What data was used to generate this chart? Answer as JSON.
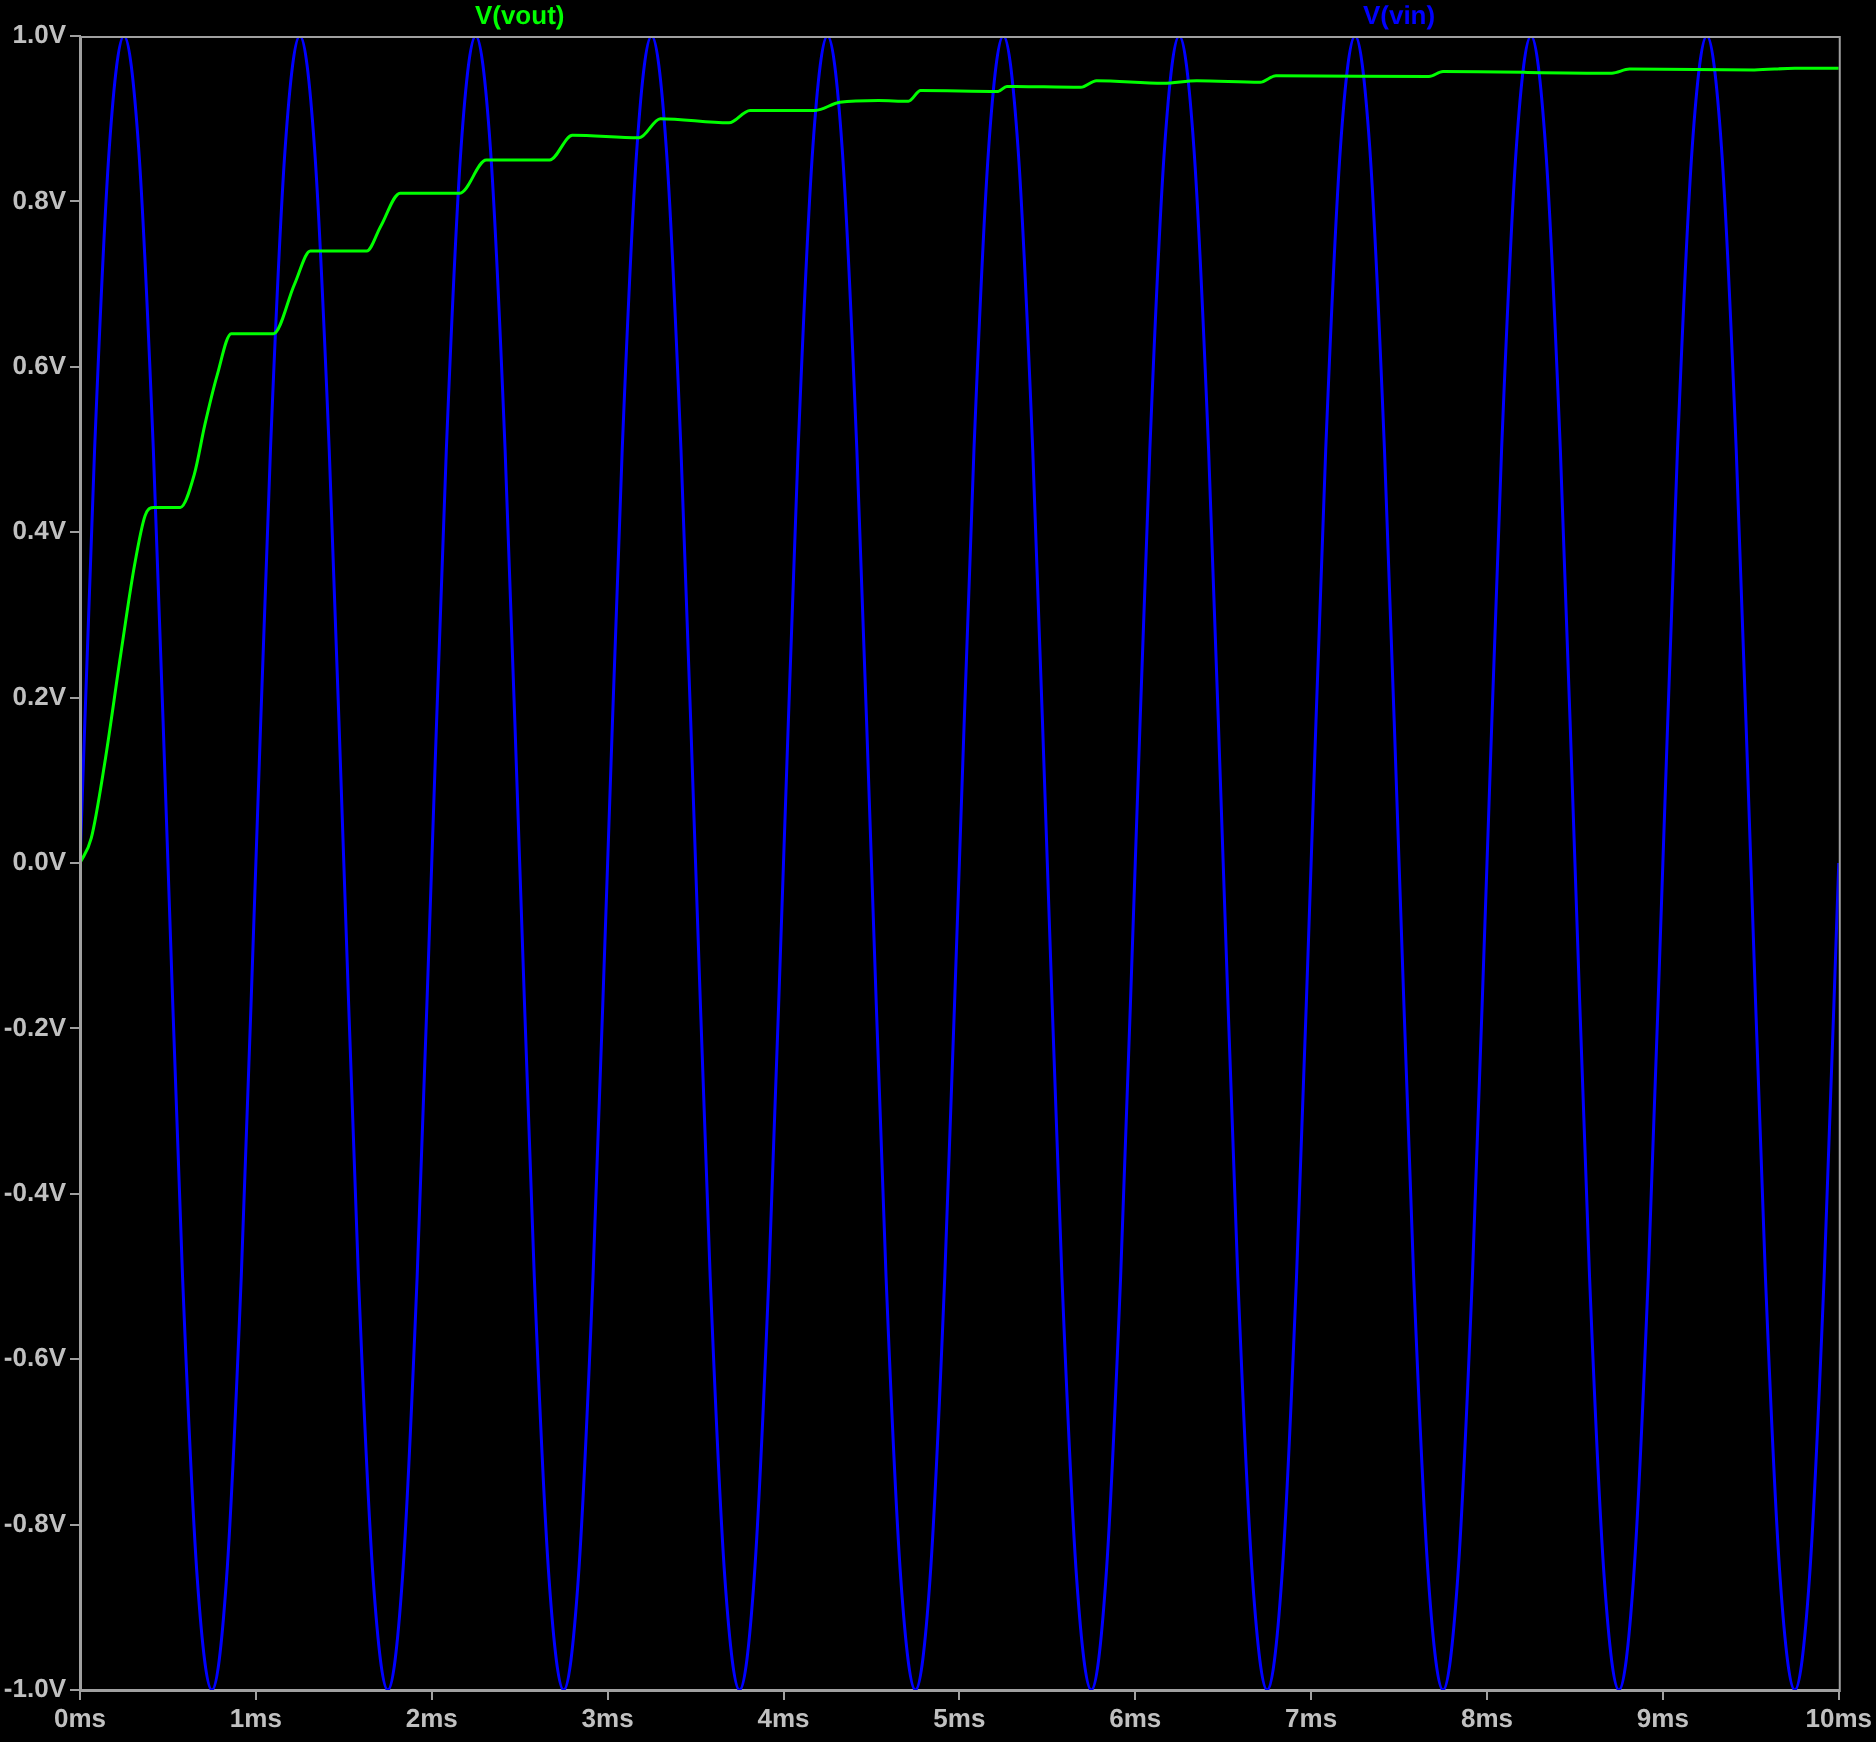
{
  "chart_data": {
    "type": "line",
    "legend": "top",
    "grid": false,
    "marker": "none",
    "line_style": "solid",
    "xlim": [
      0,
      10
    ],
    "xticks": [
      {
        "value": 0,
        "label": "0ms"
      },
      {
        "value": 1,
        "label": "1ms"
      },
      {
        "value": 2,
        "label": "2ms"
      },
      {
        "value": 3,
        "label": "3ms"
      },
      {
        "value": 4,
        "label": "4ms"
      },
      {
        "value": 5,
        "label": "5ms"
      },
      {
        "value": 6,
        "label": "6ms"
      },
      {
        "value": 7,
        "label": "7ms"
      },
      {
        "value": 8,
        "label": "8ms"
      },
      {
        "value": 9,
        "label": "9ms"
      },
      {
        "value": 10,
        "label": "10ms"
      }
    ],
    "ylim": [
      -1,
      1
    ],
    "yticks": [
      {
        "value": -1,
        "label": "-1.0V"
      },
      {
        "value": -0.8,
        "label": "-0.8V"
      },
      {
        "value": -0.6,
        "label": "-0.6V"
      },
      {
        "value": -0.4,
        "label": "-0.4V"
      },
      {
        "value": -0.2,
        "label": "-0.2V"
      },
      {
        "value": 0,
        "label": "0.0V"
      },
      {
        "value": 0.2,
        "label": "0.2V"
      },
      {
        "value": 0.4,
        "label": "0.4V"
      },
      {
        "value": 0.6,
        "label": "0.6V"
      },
      {
        "value": 0.8,
        "label": "0.8V"
      },
      {
        "value": 1,
        "label": "1.0V"
      }
    ],
    "series": [
      {
        "name": "V(vout)",
        "color": "#00ff00",
        "x": [
          0,
          0.064,
          0.14,
          0.23,
          0.31,
          0.37,
          0.42,
          0.57,
          0.65,
          0.71,
          0.78,
          0.86,
          0.91,
          1.1,
          1.22,
          1.31,
          1.37,
          1.63,
          1.71,
          1.82,
          2.16,
          2.31,
          2.67,
          2.8,
          3.18,
          3.3,
          3.69,
          3.81,
          4.18,
          4.32,
          4.54,
          4.71,
          4.78,
          5.22,
          5.27,
          5.69,
          5.78,
          6.16,
          6.35,
          6.71,
          6.8,
          7.67,
          7.75,
          8.71,
          8.81,
          9.52,
          9.75,
          10
        ],
        "values": [
          0,
          0.03,
          0.12,
          0.25,
          0.36,
          0.42,
          0.43,
          0.43,
          0.47,
          0.53,
          0.59,
          0.64,
          0.64,
          0.64,
          0.7,
          0.74,
          0.74,
          0.74,
          0.77,
          0.81,
          0.81,
          0.85,
          0.85,
          0.88,
          0.877,
          0.9,
          0.895,
          0.91,
          0.91,
          0.92,
          0.922,
          0.921,
          0.934,
          0.933,
          0.939,
          0.938,
          0.946,
          0.943,
          0.946,
          0.944,
          0.952,
          0.951,
          0.957,
          0.955,
          0.96,
          0.959,
          0.961,
          0.961
        ]
      },
      {
        "name": "V(vin)",
        "color": "#0000ff",
        "x": [
          0,
          0.083,
          0.167,
          0.25,
          0.333,
          0.417,
          0.5,
          0.583,
          0.667,
          0.75,
          0.833,
          0.917,
          1,
          1.083,
          1.167,
          1.25,
          1.333,
          1.417,
          1.5,
          1.583,
          1.667,
          1.75,
          1.833,
          1.917,
          2,
          2.083,
          2.167,
          2.25,
          2.333,
          2.417,
          2.5,
          2.583,
          2.667,
          2.75,
          2.833,
          2.917,
          3,
          3.083,
          3.167,
          3.25,
          3.333,
          3.417,
          3.5,
          3.583,
          3.667,
          3.75,
          3.833,
          3.917,
          4,
          4.083,
          4.167,
          4.25,
          4.333,
          4.417,
          4.5,
          4.583,
          4.667,
          4.75,
          4.833,
          4.917,
          5,
          5.083,
          5.167,
          5.25,
          5.333,
          5.417,
          5.5,
          5.583,
          5.667,
          5.75,
          5.833,
          5.917,
          6,
          6.083,
          6.167,
          6.25,
          6.333,
          6.417,
          6.5,
          6.583,
          6.667,
          6.75,
          6.833,
          6.917,
          7,
          7.083,
          7.167,
          7.25,
          7.333,
          7.417,
          7.5,
          7.583,
          7.667,
          7.75,
          7.833,
          7.917,
          8,
          8.083,
          8.167,
          8.25,
          8.333,
          8.417,
          8.5,
          8.583,
          8.667,
          8.75,
          8.833,
          8.917,
          9,
          9.083,
          9.167,
          9.25,
          9.333,
          9.417,
          9.5,
          9.583,
          9.667,
          9.75,
          9.833,
          9.917,
          10
        ],
        "values": [
          0,
          0.5,
          0.866,
          1,
          0.866,
          0.5,
          0,
          -0.5,
          -0.866,
          -1,
          -0.866,
          -0.5,
          0,
          0.5,
          0.866,
          1,
          0.866,
          0.5,
          0,
          -0.5,
          -0.866,
          -1,
          -0.866,
          -0.5,
          0,
          0.5,
          0.866,
          1,
          0.866,
          0.5,
          0,
          -0.5,
          -0.866,
          -1,
          -0.866,
          -0.5,
          0,
          0.5,
          0.866,
          1,
          0.866,
          0.5,
          0,
          -0.5,
          -0.866,
          -1,
          -0.866,
          -0.5,
          0,
          0.5,
          0.866,
          1,
          0.866,
          0.5,
          0,
          -0.5,
          -0.866,
          -1,
          -0.866,
          -0.5,
          0,
          0.5,
          0.866,
          1,
          0.866,
          0.5,
          0,
          -0.5,
          -0.866,
          -1,
          -0.866,
          -0.5,
          0,
          0.5,
          0.866,
          1,
          0.866,
          0.5,
          0,
          -0.5,
          -0.866,
          -1,
          -0.866,
          -0.5,
          0,
          0.5,
          0.866,
          1,
          0.866,
          0.5,
          0,
          -0.5,
          -0.866,
          -1,
          -0.866,
          -0.5,
          0,
          0.5,
          0.866,
          1,
          0.866,
          0.5,
          0,
          -0.5,
          -0.866,
          -1,
          -0.866,
          -0.5,
          0,
          0.5,
          0.866,
          1,
          0.866,
          0.5,
          0,
          -0.5,
          -0.866,
          -1,
          -0.866,
          -0.5,
          0
        ]
      }
    ]
  }
}
